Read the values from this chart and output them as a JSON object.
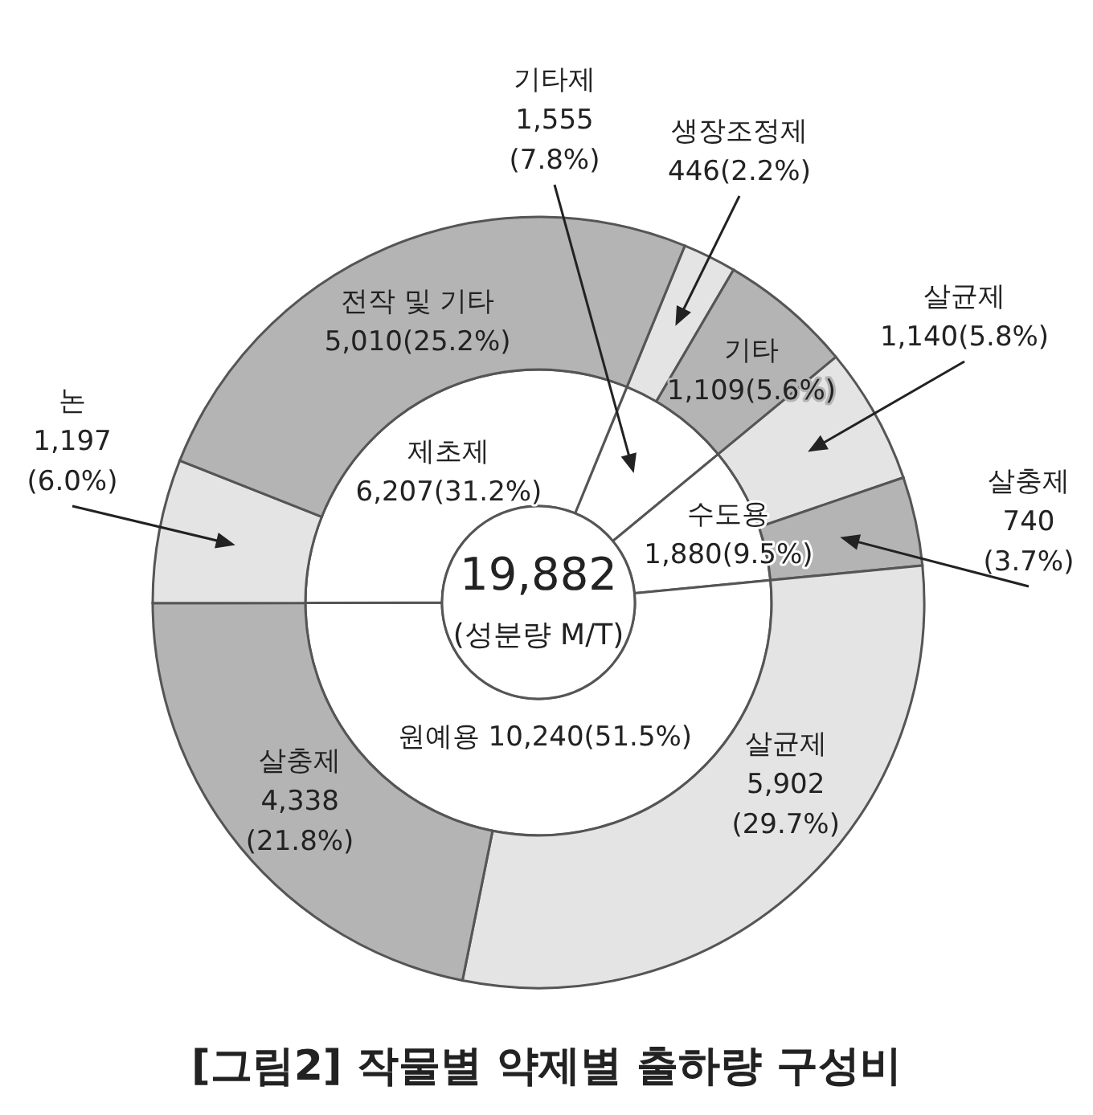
{
  "chart_data": [
    {
      "type": "donut",
      "title": "[그림2] 작물별 약제별 출하량 구성비",
      "annotations": [
        "19,882",
        "(성분량 M/T)"
      ],
      "categories": [
        "기타제",
        "수도용",
        "원예용",
        "제초제"
      ],
      "values": [
        1555,
        1880,
        10240,
        6207
      ],
      "value_labels": [
        "1,555\n(7.8%)",
        "1,880(9.5%)",
        "10,240(51.5%)",
        "6,207(31.2%)"
      ],
      "colors": [
        "#ffffff",
        "#ffffff",
        "#ffffff",
        "#ffffff"
      ]
    },
    {
      "type": "donut",
      "categories": [
        "생장조정제",
        "기타",
        "살균제",
        "살충제",
        "살균제",
        "살충제",
        "논",
        "전작 및 기타"
      ],
      "values": [
        446,
        1109,
        1140,
        740,
        5902,
        4338,
        1197,
        5010
      ],
      "value_labels": [
        "446(2.2%)",
        "1,109(5.6%)",
        "1,140(5.8%)",
        "740\n(3.7%)",
        "5,902\n(29.7%)",
        "4,338\n(21.8%)",
        "1,197\n(6.0%)",
        "5,010(25.2%)"
      ],
      "colors": [
        "#e4e4e4",
        "#b4b4b4",
        "#e4e4e4",
        "#b4b4b4",
        "#e4e4e4",
        "#b4b4b4",
        "#e4e4e4",
        "#b4b4b4"
      ]
    }
  ]
}
